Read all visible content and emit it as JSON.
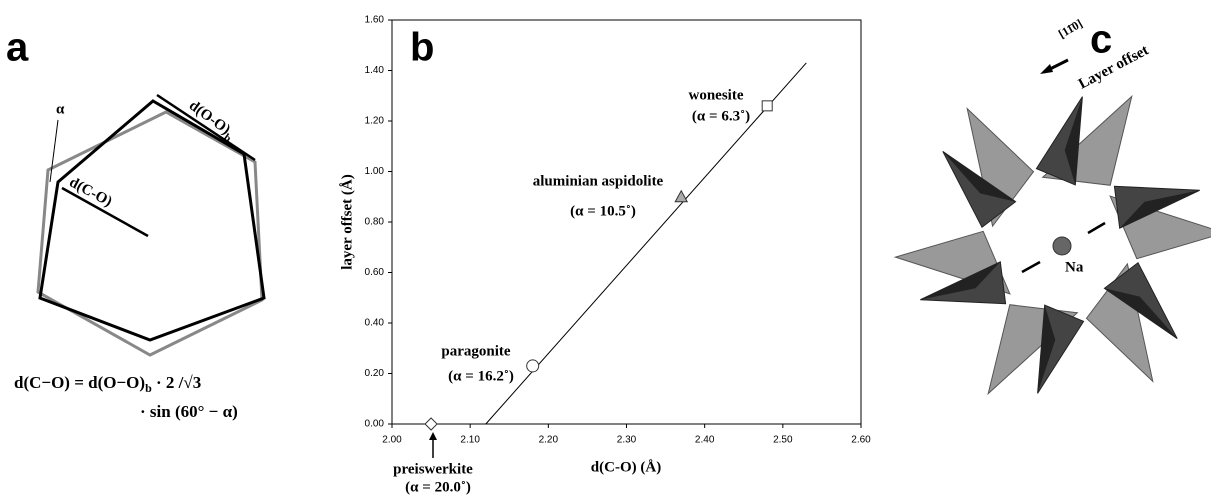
{
  "panel_a": {
    "letter": "a",
    "alpha": "α",
    "d_co": "d(C-O)",
    "d_oo": "d(O-O)",
    "d_oo_sub": "b",
    "formula": [
      "d(C−O) = d(O−O)",
      "b",
      " · 2 /√3",
      "· sin (60° − α)"
    ]
  },
  "chart_data": {
    "type": "scatter",
    "letter": "b",
    "x_label": "d(C-O) (Å)",
    "y_label": "layer offset (Å)",
    "xlim": [
      2.0,
      2.6
    ],
    "xticks": [
      {
        "value": 2.0,
        "label": "2.00"
      },
      {
        "value": 2.1,
        "label": "2.10"
      },
      {
        "value": 2.2,
        "label": "2.20"
      },
      {
        "value": 2.3,
        "label": "2.30"
      },
      {
        "value": 2.4,
        "label": "2.40"
      },
      {
        "value": 2.5,
        "label": "2.50"
      },
      {
        "value": 2.6,
        "label": "2.60"
      }
    ],
    "ylim": [
      0,
      1.6
    ],
    "yticks": [
      {
        "value": 0,
        "label": "0.00"
      },
      {
        "value": 0.2,
        "label": "0.20"
      },
      {
        "value": 0.4,
        "label": "0.40"
      },
      {
        "value": 0.6,
        "label": "0.60"
      },
      {
        "value": 0.8,
        "label": "0.80"
      },
      {
        "value": 1.0,
        "label": "1.00"
      },
      {
        "value": 1.2,
        "label": "1.20"
      },
      {
        "value": 1.4,
        "label": "1.40"
      },
      {
        "value": 1.6,
        "label": "1.60"
      }
    ],
    "series": [
      {
        "name": "preiswerkite",
        "annotation": "(α = 20.0˚)",
        "marker": "diamond",
        "x": [
          2.05
        ],
        "values": [
          0.0
        ]
      },
      {
        "name": "paragonite",
        "annotation": "(α = 16.2˚)",
        "marker": "circle",
        "x": [
          2.18
        ],
        "values": [
          0.23
        ]
      },
      {
        "name": "aluminian aspidolite",
        "annotation": "(α = 10.5˚)",
        "marker": "triangle",
        "x": [
          2.37
        ],
        "values": [
          0.9
        ]
      },
      {
        "name": "wonesite",
        "annotation": "(α = 6.3˚)",
        "marker": "square",
        "x": [
          2.48
        ],
        "values": [
          1.26
        ]
      }
    ],
    "trendline": {
      "x": [
        2.12,
        2.53
      ],
      "values": [
        0.0,
        1.43
      ]
    }
  },
  "panel_c": {
    "letter": "c",
    "direction": "[11̄0]",
    "caption": "Layer offset",
    "ion": "Na"
  }
}
